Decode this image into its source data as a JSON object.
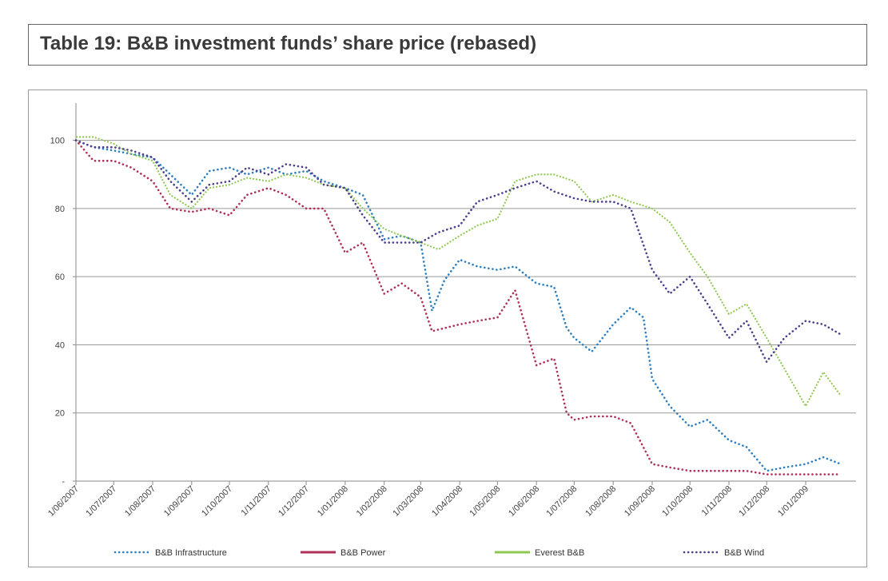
{
  "title": "Table 19: B&B investment funds’ share price (rebased)",
  "chart_data": {
    "type": "line",
    "x": [
      "1/06/2007",
      "1/07/2007",
      "1/08/2007",
      "1/09/2007",
      "1/10/2007",
      "1/11/2007",
      "1/12/2007",
      "1/01/2008",
      "1/02/2008",
      "1/03/2008",
      "1/04/2008",
      "1/05/2008",
      "1/06/2008",
      "1/07/2008",
      "1/08/2008",
      "1/09/2008",
      "1/10/2008",
      "1/11/2008",
      "1/12/2008",
      "1/01/2009"
    ],
    "x_labels": [
      "1/06/2007",
      "1/07/2007",
      "1/08/2007",
      "1/09/2007",
      "1/10/2007",
      "1/11/2007",
      "1/12/2007",
      "1/01/2008",
      "1/02/2008",
      "1/03/2008",
      "1/04/2008",
      "1/05/2008",
      "1/06/2008",
      "1/07/2008",
      "1/08/2008",
      "1/09/2008",
      "1/10/2008",
      "1/11/2008",
      "1/12/2008",
      "1/01/2009"
    ],
    "y_ticks": [
      "-",
      "20",
      "40",
      "60",
      "80",
      "100"
    ],
    "ylim": [
      0,
      110
    ],
    "grid": true,
    "legend_position": "bottom",
    "series": [
      {
        "name": "B&B Infrastructure",
        "color": "#2e7fc1",
        "style": "dotted",
        "x": [
          "1/06/2007",
          "15/06/2007",
          "1/07/2007",
          "15/07/2007",
          "1/08/2007",
          "15/08/2007",
          "1/09/2007",
          "15/09/2007",
          "1/10/2007",
          "15/10/2007",
          "1/11/2007",
          "15/11/2007",
          "1/12/2007",
          "15/12/2007",
          "1/01/2008",
          "15/01/2008",
          "1/02/2008",
          "15/02/2008",
          "1/03/2008",
          "10/03/2008",
          "20/03/2008",
          "1/04/2008",
          "15/04/2008",
          "1/05/2008",
          "15/05/2008",
          "1/06/2008",
          "15/06/2008",
          "25/06/2008",
          "1/07/2008",
          "15/07/2008",
          "1/08/2008",
          "15/08/2008",
          "25/08/2008",
          "1/09/2008",
          "15/09/2008",
          "1/10/2008",
          "15/10/2008",
          "1/11/2008",
          "15/11/2008",
          "1/12/2008",
          "15/12/2008",
          "1/01/2009",
          "15/01/2009",
          "29/01/2009"
        ],
        "values": [
          100,
          98,
          97,
          96,
          95,
          90,
          84,
          91,
          92,
          90,
          92,
          90,
          91,
          88,
          86,
          84,
          71,
          72,
          70,
          50,
          59,
          65,
          63,
          62,
          63,
          58,
          57,
          45,
          42,
          38,
          46,
          51,
          48,
          30,
          22,
          16,
          18,
          12,
          10,
          3,
          4,
          5,
          7,
          5
        ]
      },
      {
        "name": "B&B Power",
        "color": "#b0305a",
        "style": "dotted",
        "x": [
          "1/06/2007",
          "15/06/2007",
          "1/07/2007",
          "15/07/2007",
          "1/08/2007",
          "15/08/2007",
          "1/09/2007",
          "15/09/2007",
          "1/10/2007",
          "15/10/2007",
          "1/11/2007",
          "15/11/2007",
          "1/12/2007",
          "15/12/2007",
          "1/01/2008",
          "15/01/2008",
          "1/02/2008",
          "15/02/2008",
          "1/03/2008",
          "10/03/2008",
          "1/04/2008",
          "15/04/2008",
          "1/05/2008",
          "15/05/2008",
          "1/06/2008",
          "15/06/2008",
          "25/06/2008",
          "1/07/2008",
          "15/07/2008",
          "1/08/2008",
          "15/08/2008",
          "1/09/2008",
          "15/09/2008",
          "1/10/2008",
          "15/10/2008",
          "1/11/2008",
          "15/11/2008",
          "1/12/2008",
          "15/12/2008",
          "1/01/2009",
          "29/01/2009"
        ],
        "values": [
          100,
          94,
          94,
          92,
          88,
          80,
          79,
          80,
          78,
          84,
          86,
          84,
          80,
          80,
          67,
          70,
          55,
          58,
          54,
          44,
          46,
          47,
          48,
          56,
          34,
          36,
          20,
          18,
          19,
          19,
          17,
          5,
          4,
          3,
          3,
          3,
          3,
          2,
          2,
          2,
          2
        ]
      },
      {
        "name": "Everest B&B",
        "color": "#8dc84f",
        "style": "solid",
        "x": [
          "1/06/2007",
          "15/06/2007",
          "1/07/2007",
          "15/07/2007",
          "1/08/2007",
          "15/08/2007",
          "1/09/2007",
          "15/09/2007",
          "1/10/2007",
          "15/10/2007",
          "1/11/2007",
          "15/11/2007",
          "1/12/2007",
          "15/12/2007",
          "1/01/2008",
          "15/01/2008",
          "1/02/2008",
          "15/02/2008",
          "1/03/2008",
          "15/03/2008",
          "1/04/2008",
          "15/04/2008",
          "1/05/2008",
          "15/05/2008",
          "1/06/2008",
          "15/06/2008",
          "1/07/2008",
          "15/07/2008",
          "1/08/2008",
          "15/08/2008",
          "1/09/2008",
          "15/09/2008",
          "1/10/2008",
          "15/10/2008",
          "1/11/2008",
          "15/11/2008",
          "1/12/2008",
          "15/12/2008",
          "1/01/2009",
          "15/01/2009",
          "29/01/2009"
        ],
        "values": [
          101,
          101,
          99,
          96,
          94,
          84,
          80,
          86,
          87,
          89,
          88,
          90,
          89,
          87,
          86,
          80,
          74,
          72,
          70,
          68,
          72,
          75,
          77,
          88,
          90,
          90,
          88,
          82,
          84,
          82,
          80,
          76,
          67,
          60,
          49,
          52,
          42,
          33,
          22,
          32,
          25
        ]
      },
      {
        "name": "B&B Wind",
        "color": "#4d3f8e",
        "style": "dotted",
        "x": [
          "1/06/2007",
          "15/06/2007",
          "1/07/2007",
          "15/07/2007",
          "1/08/2007",
          "15/08/2007",
          "1/09/2007",
          "15/09/2007",
          "1/10/2007",
          "15/10/2007",
          "1/11/2007",
          "15/11/2007",
          "1/12/2007",
          "15/12/2007",
          "1/01/2008",
          "15/01/2008",
          "1/02/2008",
          "15/02/2008",
          "1/03/2008",
          "15/03/2008",
          "1/04/2008",
          "15/04/2008",
          "1/05/2008",
          "15/05/2008",
          "1/06/2008",
          "15/06/2008",
          "1/07/2008",
          "15/07/2008",
          "1/08/2008",
          "15/08/2008",
          "1/09/2008",
          "15/09/2008",
          "1/10/2008",
          "15/10/2008",
          "1/11/2008",
          "15/11/2008",
          "1/12/2008",
          "15/12/2008",
          "1/01/2009",
          "15/01/2009",
          "29/01/2009"
        ],
        "values": [
          100,
          98,
          98,
          97,
          95,
          88,
          82,
          87,
          88,
          92,
          90,
          93,
          92,
          87,
          86,
          78,
          70,
          70,
          70,
          73,
          75,
          82,
          84,
          86,
          88,
          85,
          83,
          82,
          82,
          80,
          62,
          55,
          60,
          52,
          42,
          47,
          35,
          42,
          47,
          46,
          43
        ]
      }
    ]
  }
}
